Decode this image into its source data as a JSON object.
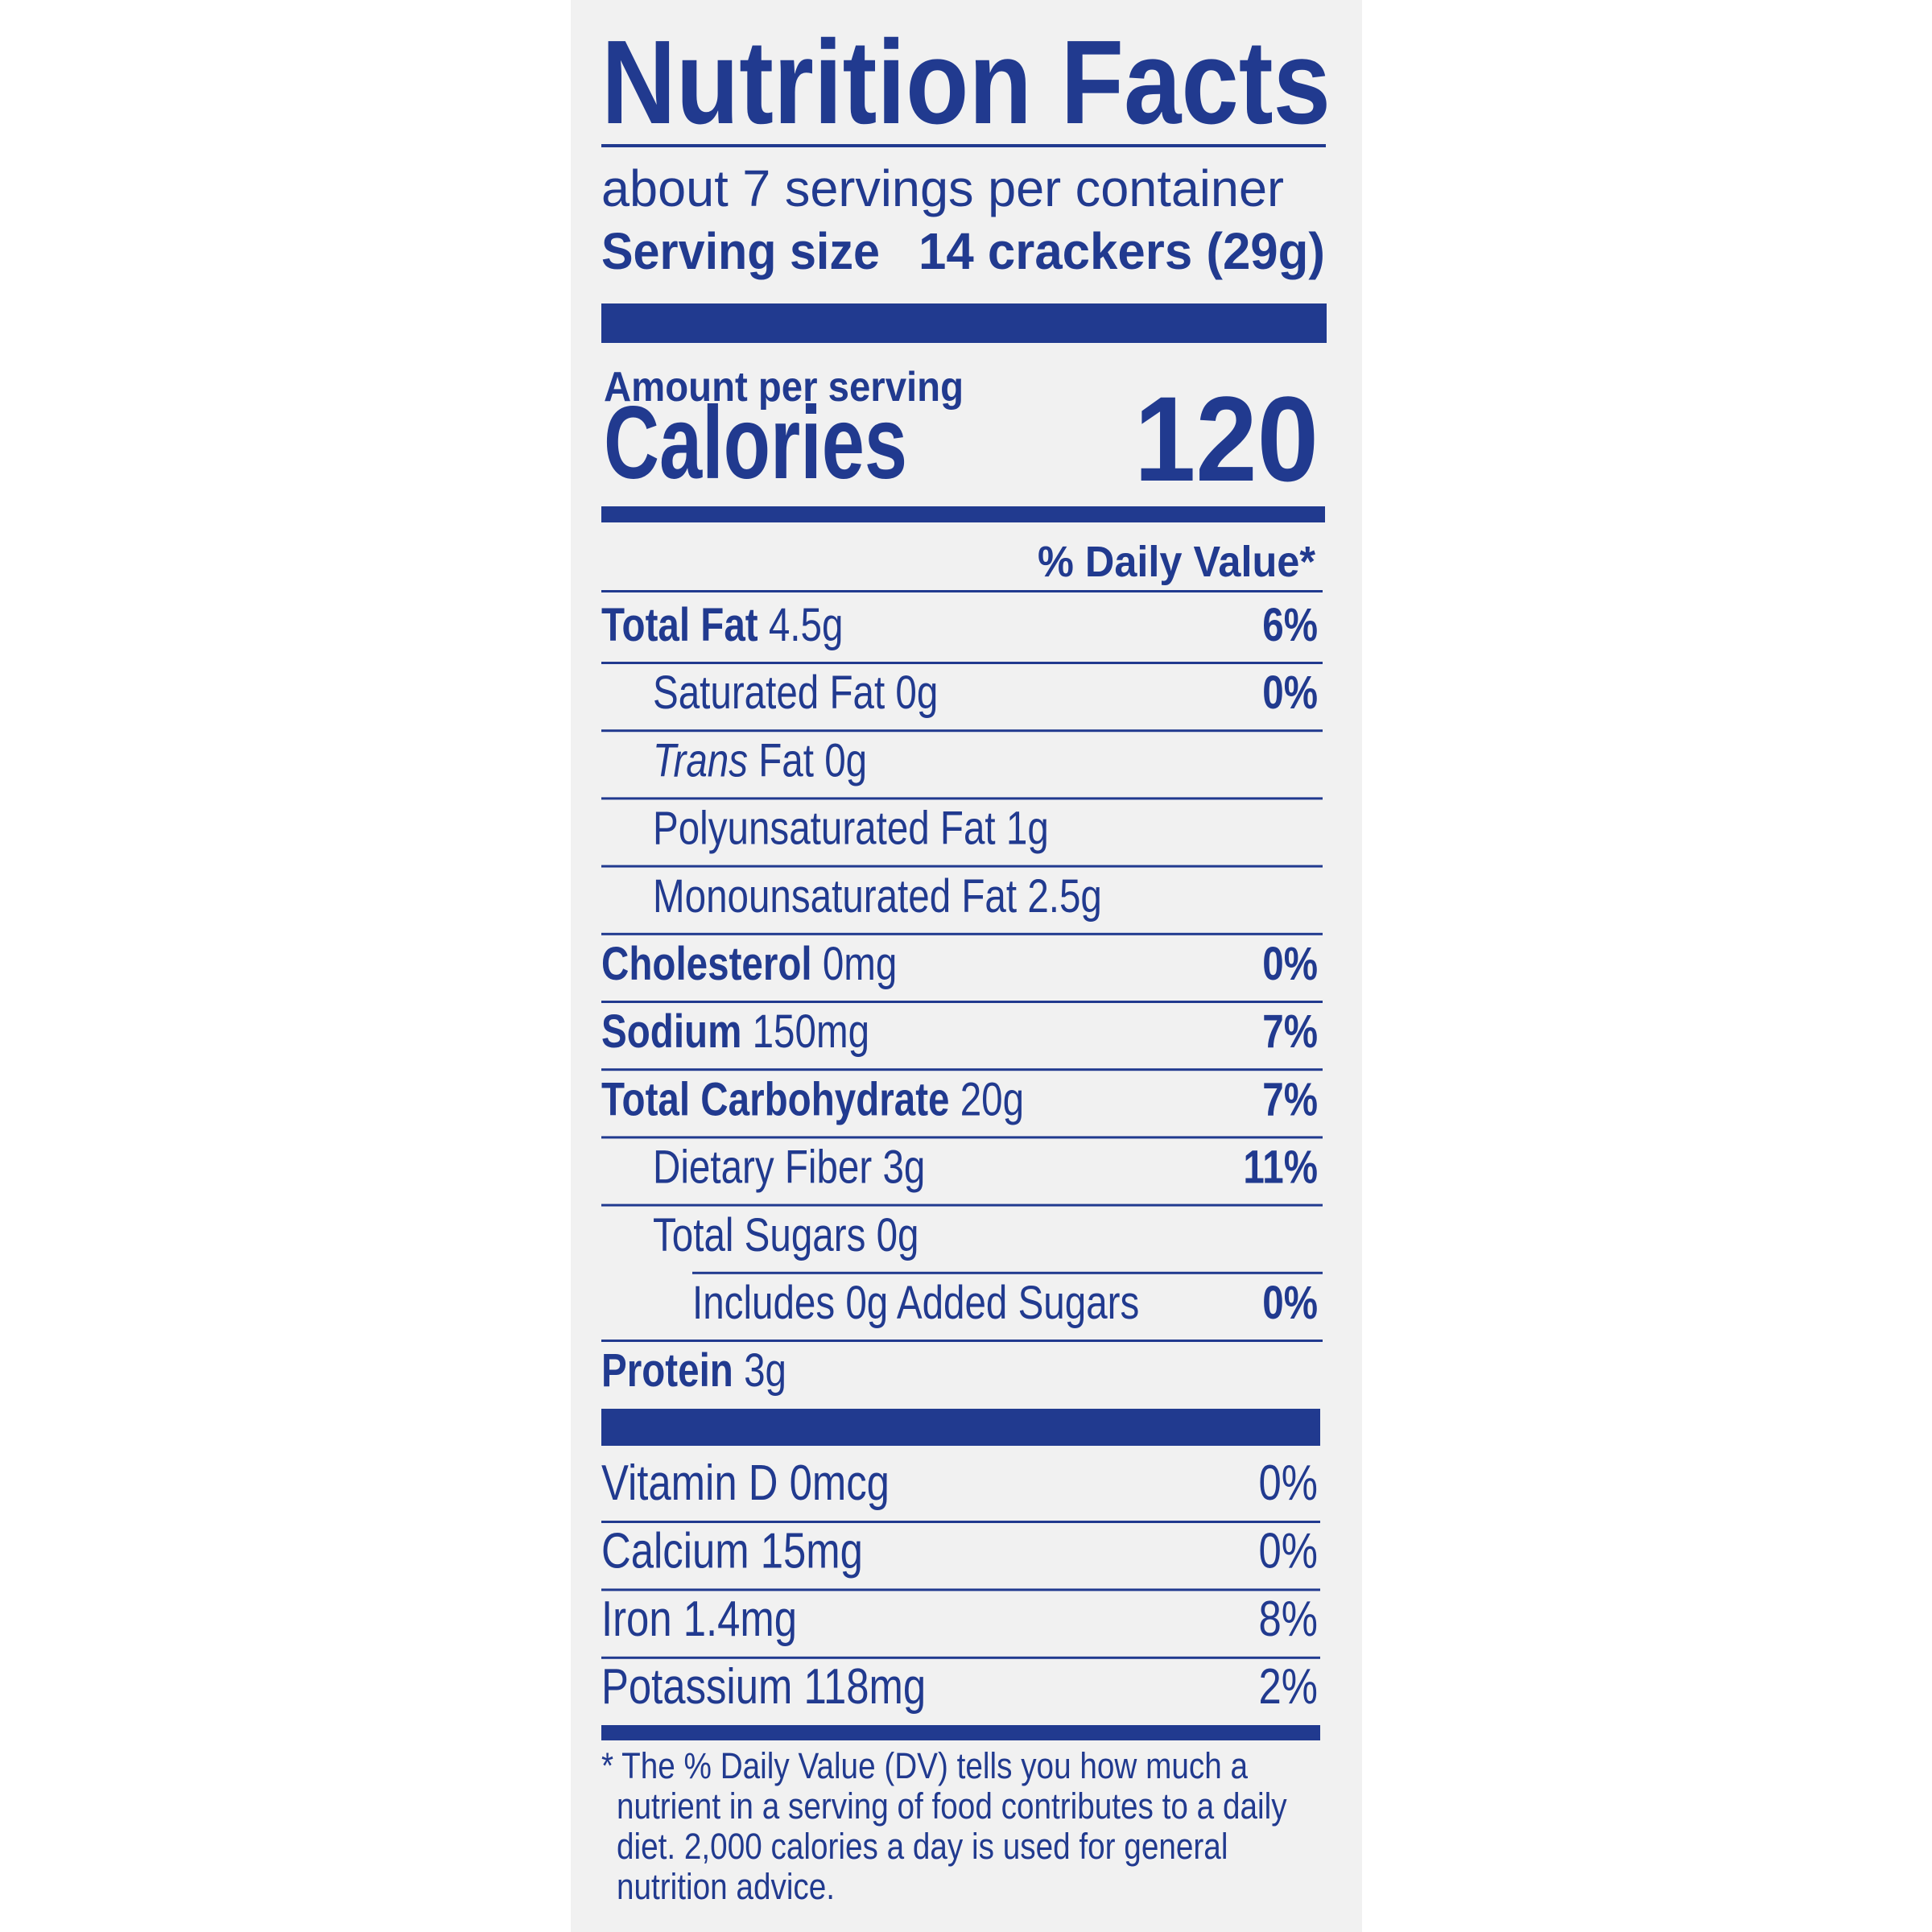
{
  "header": {
    "title": "Nutrition Facts",
    "servings": "about 7 servings per container",
    "serving_size_label": "Serving size",
    "serving_size_value": "14 crackers (29g)"
  },
  "calories": {
    "label_small": "Amount per serving",
    "label": "Calories",
    "value": "120"
  },
  "daily_value_header": "% Daily Value*",
  "nutrients": [
    {
      "name": "Total Fat",
      "amount": "4.5g",
      "dv": "6%",
      "indent": 0
    },
    {
      "name": "Saturated Fat",
      "amount": "0g",
      "dv": "0%",
      "indent": 1
    },
    {
      "name": "Trans Fat",
      "amount": "0g",
      "dv": null,
      "indent": 1,
      "italic_first_word": true
    },
    {
      "name": "Polyunsaturated Fat",
      "amount": "1g",
      "dv": null,
      "indent": 1
    },
    {
      "name": "Monounsaturated Fat",
      "amount": "2.5g",
      "dv": null,
      "indent": 1
    },
    {
      "name": "Cholesterol",
      "amount": "0mg",
      "dv": "0%",
      "indent": 0
    },
    {
      "name": "Sodium",
      "amount": "150mg",
      "dv": "7%",
      "indent": 0
    },
    {
      "name": "Total Carbohydrate",
      "amount": "20g",
      "dv": "7%",
      "indent": 0
    },
    {
      "name": "Dietary Fiber",
      "amount": "3g",
      "dv": "11%",
      "indent": 1
    },
    {
      "name": "Total Sugars",
      "amount": "0g",
      "dv": null,
      "indent": 1
    },
    {
      "name": "Includes 0g Added Sugars",
      "amount": null,
      "dv": "0%",
      "indent": 2
    },
    {
      "name": "Protein",
      "amount": "3g",
      "dv": null,
      "indent": 0
    }
  ],
  "vitamins": [
    {
      "name": "Vitamin D 0mcg",
      "dv": "0%"
    },
    {
      "name": "Calcium 15mg",
      "dv": "0%"
    },
    {
      "name": "Iron 1.4mg",
      "dv": "8%"
    },
    {
      "name": "Potassium 118mg",
      "dv": "2%"
    }
  ],
  "footnote": [
    "* The % Daily Value (DV) tells you how much a",
    "nutrient in a serving of food contributes to a daily",
    "diet. 2,000 calories a day is used for general",
    "nutrition advice."
  ]
}
